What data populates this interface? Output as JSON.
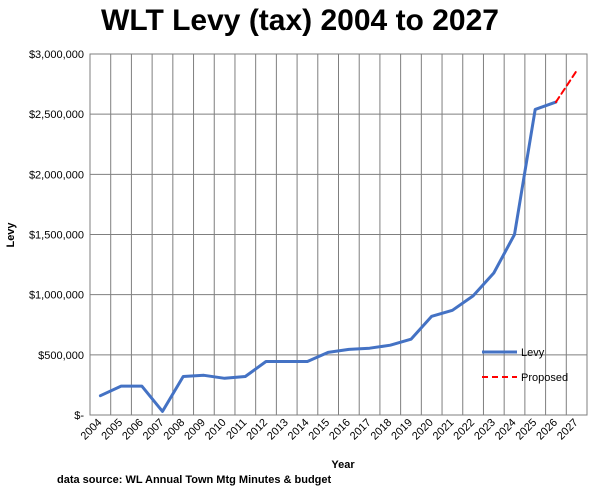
{
  "chart_data": {
    "type": "line",
    "title": "WLT Levy (tax) 2004 to 2027",
    "xlabel": "Year",
    "ylabel": "Levy",
    "categories": [
      "2004",
      "2005",
      "2006",
      "2007",
      "2008",
      "2009",
      "2010",
      "2011",
      "2012",
      "2013",
      "2014",
      "2015",
      "2016",
      "2017",
      "2018",
      "2019",
      "2020",
      "2021",
      "2022",
      "2023",
      "2024",
      "2025",
      "2026",
      "2027"
    ],
    "y_ticks": [
      "$-",
      "$500,000",
      "$1,000,000",
      "$1,500,000",
      "$2,000,000",
      "$2,500,000",
      "$3,000,000"
    ],
    "ylim": [
      0,
      3000000
    ],
    "grid": "vertical and horizontal gridlines",
    "legend_position": "right",
    "series": [
      {
        "name": "Levy",
        "color": "#4472C4",
        "style": "solid",
        "values": [
          160000,
          240000,
          240000,
          30000,
          320000,
          330000,
          305000,
          320000,
          445000,
          445000,
          445000,
          520000,
          545000,
          555000,
          580000,
          630000,
          820000,
          870000,
          990000,
          1180000,
          1500000,
          2540000,
          2600000,
          null
        ]
      },
      {
        "name": "Proposed",
        "color": "#FF0000",
        "style": "dashed",
        "values": [
          null,
          null,
          null,
          null,
          null,
          null,
          null,
          null,
          null,
          null,
          null,
          null,
          null,
          null,
          null,
          null,
          null,
          null,
          null,
          null,
          null,
          null,
          2600000,
          2860000
        ]
      }
    ]
  },
  "source_note": "data source: WL Annual Town Mtg Minutes & budget"
}
